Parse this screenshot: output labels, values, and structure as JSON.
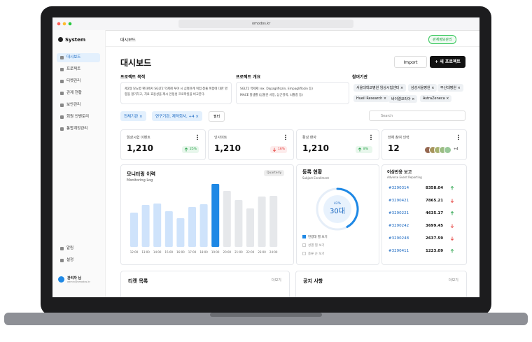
{
  "browser": {
    "url": "omodos.kr"
  },
  "sidebar": {
    "logo": "System",
    "menu": [
      "대시보드",
      "프로젝트",
      "티켓관리",
      "관계 현황",
      "보안관리",
      "회원 인벤토리",
      "통합계정관리"
    ],
    "bottom": [
      "알림",
      "설정"
    ],
    "user": {
      "name": "관리자 님",
      "email": "admin@omodos.kr"
    }
  },
  "topbar": {
    "breadcrumb": "대시보드",
    "button": "관계정보관리"
  },
  "header": {
    "title": "대시보드",
    "import": "Import",
    "new_project": "+ 새 프로젝트"
  },
  "sections": {
    "purpose": {
      "title": "프로젝트 목적",
      "text": "제2형 당뇨병 환자에서 SGLT2 억제제 투여 시 심혈관계 위험 창출 위험에 대한 영향을 평가하고, 치료 효용성을 제시 안정성 프로파일을 비교한다."
    },
    "overview": {
      "title": "프로젝트 개요",
      "lines": [
        "SGLT2 억제제 (ex. Dapagliflozin, Empagliflozin 등)",
        "MACE 발생률 (심혈관 사망, 심근경색, 뇌졸중 등)"
      ]
    },
    "institutions": {
      "title": "참여기관",
      "chips": [
        "서울대학교병원 임상시험센터 ×",
        "삼성서울병원 ×",
        "부산대병원 ×",
        "Hueil Research ×",
        "바이엘코리아 ×",
        "AstraZeneca ×"
      ]
    }
  },
  "filters": {
    "chips": [
      "전체기관 ×",
      "연구기관, 제약회사, +4 ×"
    ],
    "filter": "필터",
    "search": "Search"
  },
  "stats": [
    {
      "label": "임상시험 이벤트",
      "value": "1,210",
      "change": "25%",
      "trend": "up"
    },
    {
      "label": "인사이트",
      "value": "1,210",
      "change": "16%",
      "trend": "down"
    },
    {
      "label": "활성 환자",
      "value": "1,210",
      "change": "8%",
      "trend": "up"
    },
    {
      "label": "전체 참여 인력",
      "value": "12",
      "extra": "+4"
    }
  ],
  "monitoring": {
    "title": "모니터링 이력",
    "subtitle": "Monitoring Log",
    "dropdown": "Quarterly",
    "chart_data": {
      "type": "bar",
      "categories": [
        "12:00",
        "13:00",
        "14:00",
        "15:00",
        "16:00",
        "17:00",
        "18:00",
        "19:00",
        "20:00",
        "21:00",
        "22:00",
        "23:00",
        "24:00"
      ],
      "values": [
        49,
        60,
        62,
        51,
        41,
        57,
        61,
        90,
        80,
        67,
        55,
        72,
        73
      ],
      "colors": [
        "#cfe3fb",
        "#cfe3fb",
        "#cfe3fb",
        "#cfe3fb",
        "#cfe3fb",
        "#cfe3fb",
        "#cfe3fb",
        "#1e88e5",
        "#e6e8eb",
        "#e6e8eb",
        "#e6e8eb",
        "#e6e8eb",
        "#e6e8eb"
      ]
    }
  },
  "enrollment": {
    "title": "등록 현황",
    "subtitle": "Subject Enrollment",
    "chart_data": {
      "type": "donut",
      "values": [
        42
      ],
      "value_labels": [
        "42%"
      ],
      "color": "#1e88e5",
      "center": "30대"
    },
    "options": [
      "연령대 별 보기",
      "성별 별 보기",
      "종류 순 보기"
    ]
  },
  "adverse": {
    "title": "이상반응 보고",
    "subtitle": "Adverse Event Reporting",
    "rows": [
      {
        "id": "#3290314",
        "value": "8358.04",
        "trend": "up"
      },
      {
        "id": "#3290421",
        "value": "7865.21",
        "trend": "down"
      },
      {
        "id": "#3290221",
        "value": "4635.17",
        "trend": "up"
      },
      {
        "id": "#3290242",
        "value": "3699.45",
        "trend": "down"
      },
      {
        "id": "#3290248",
        "value": "2637.59",
        "trend": "down"
      },
      {
        "id": "#3290411",
        "value": "1223.09",
        "trend": "up"
      }
    ]
  },
  "tickets": {
    "title": "티켓 목록",
    "more": "더보기"
  },
  "notices": {
    "title": "공지 사항",
    "more": "더보기"
  }
}
